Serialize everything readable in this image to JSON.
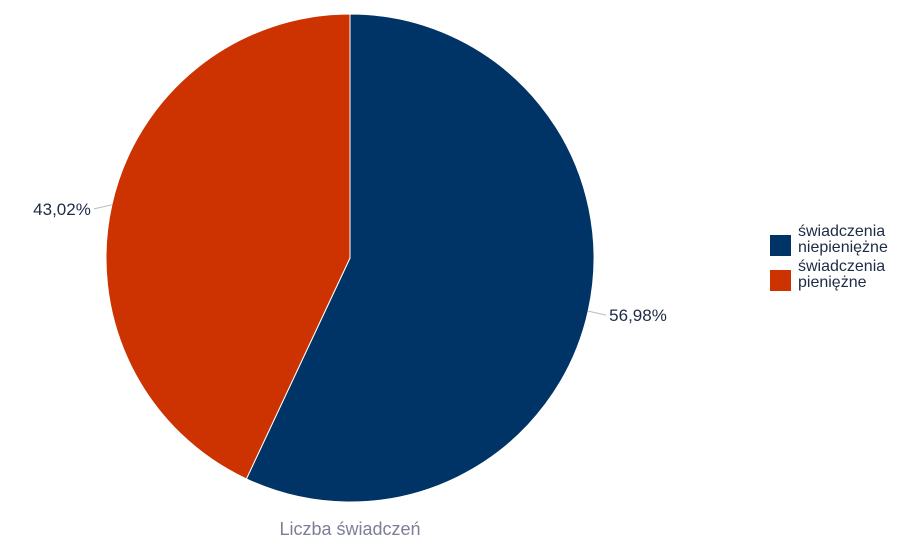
{
  "chart_data": {
    "type": "pie",
    "title": "",
    "subtitle": "Liczba świadczeń",
    "legend_position": "right",
    "slices": [
      {
        "label": "świadczenia niepieniężne",
        "value": 56.98,
        "display": "56,98%",
        "color": "#003366"
      },
      {
        "label": "świadczenia pieniężne",
        "value": 43.02,
        "display": "43,02%",
        "color": "#cc3300"
      }
    ]
  },
  "legend": {
    "items": [
      {
        "line1": "świadczenia",
        "line2": "niepieniężne",
        "color": "#003366"
      },
      {
        "line1": "świadczenia",
        "line2": "pieniężne",
        "color": "#cc3300"
      }
    ]
  }
}
